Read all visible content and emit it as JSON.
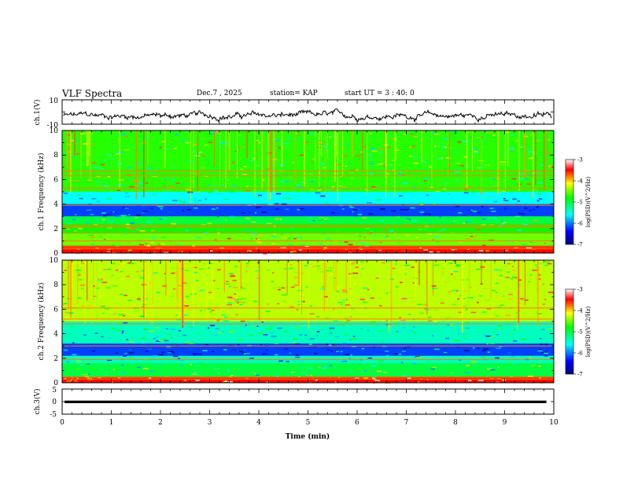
{
  "header": {
    "title": "VLF Spectra",
    "date": "Dec.7 , 2025",
    "station": "station= KAP",
    "start_ut": "start UT =  3 : 40: 0"
  },
  "chart_data": [
    {
      "type": "line",
      "id": "ch1-waveform",
      "ylabel": "ch.1(V)",
      "ylim": [
        -10,
        10
      ],
      "ytick_labels": [
        "10",
        "-10"
      ],
      "description_series": "noisy broadband waveform, amplitude mostly between -8 and 2 V"
    },
    {
      "type": "heatmap",
      "id": "ch1-spectrogram",
      "ylabel": "ch.1 Frequency (kHz)",
      "xlim": [
        0,
        10
      ],
      "ylim": [
        0,
        10
      ],
      "ytick_labels": [
        "0",
        "2",
        "4",
        "6",
        "8",
        "10"
      ],
      "colorbar": {
        "label": "log(PSD)(V^2/Hz)",
        "range": [
          -7,
          -3
        ],
        "tick_labels": [
          "-3",
          "-4",
          "-5",
          "-6",
          "-7"
        ]
      },
      "bands_khz": [
        {
          "range": [
            0,
            0.6
          ],
          "level": -3.5
        },
        {
          "range": [
            0.6,
            1.6
          ],
          "level": -4.5
        },
        {
          "range": [
            1.6,
            2.4
          ],
          "level": -4.8
        },
        {
          "range": [
            2.4,
            3.0
          ],
          "level": -5.0
        },
        {
          "range": [
            3.0,
            4.0
          ],
          "level": -6.2
        },
        {
          "range": [
            4.0,
            5.0
          ],
          "level": -5.6
        },
        {
          "range": [
            5.0,
            10.0
          ],
          "level": -4.7
        }
      ]
    },
    {
      "type": "heatmap",
      "id": "ch2-spectrogram",
      "ylabel": "ch.2 Frequency (kHz)",
      "xlim": [
        0,
        10
      ],
      "ylim": [
        0,
        10
      ],
      "ytick_labels": [
        "0",
        "2",
        "4",
        "6",
        "8",
        "10"
      ],
      "colorbar": {
        "label": "log(PSD)(V^2/Hz)",
        "range": [
          -7,
          -3
        ],
        "tick_labels": [
          "-3",
          "-4",
          "-5",
          "-6",
          "-7"
        ]
      },
      "bands_khz": [
        {
          "range": [
            0,
            0.5
          ],
          "level": -3.5
        },
        {
          "range": [
            0.5,
            1.6
          ],
          "level": -5.0
        },
        {
          "range": [
            1.6,
            2.2
          ],
          "level": -5.4
        },
        {
          "range": [
            2.2,
            3.2
          ],
          "level": -6.2
        },
        {
          "range": [
            3.2,
            5.0
          ],
          "level": -5.4
        },
        {
          "range": [
            5.0,
            10.0
          ],
          "level": -4.3
        }
      ]
    },
    {
      "type": "line",
      "id": "ch3-waveform",
      "ylabel": "ch.3(V)",
      "ylim": [
        -5,
        5
      ],
      "ytick_labels": [
        "5",
        "0",
        "-5"
      ],
      "xlabel": "Time (min)",
      "xlim": [
        0,
        10
      ],
      "xtick_labels": [
        "0",
        "1",
        "2",
        "3",
        "4",
        "5",
        "6",
        "7",
        "8",
        "9",
        "10"
      ],
      "description_series": "near-constant band around 0 V (about -0.5 to 0.3 V), ends at about 9.85 min"
    }
  ],
  "colors": {
    "axis": "#000000",
    "colormap": [
      "#000080",
      "#0000ff",
      "#00ffff",
      "#00ff00",
      "#ffff00",
      "#ff0000",
      "#ffffff"
    ]
  }
}
